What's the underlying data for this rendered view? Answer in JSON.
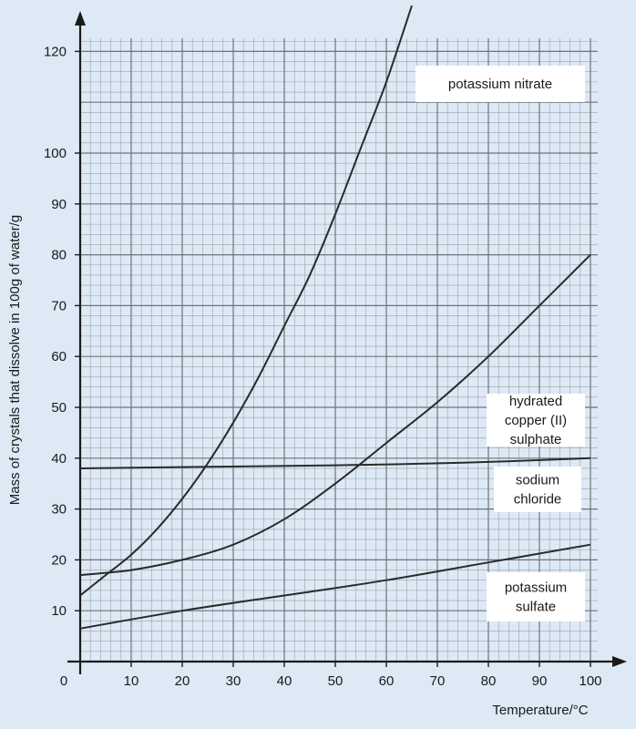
{
  "chart_data": {
    "type": "line",
    "title": "",
    "xlabel": "Temperature/°C",
    "ylabel": "Mass of crystals that dissolve in 100g of water/g",
    "xlim": [
      0,
      100
    ],
    "ylim": [
      0,
      130
    ],
    "origin_label": "0",
    "x_ticks": [
      10,
      20,
      30,
      40,
      50,
      60,
      70,
      80,
      90,
      100
    ],
    "y_ticks": [
      10,
      20,
      30,
      40,
      50,
      60,
      70,
      80,
      90,
      100,
      120
    ],
    "grid": true,
    "series": [
      {
        "name": "potassium nitrate",
        "label_lines": [
          "potassium nitrate"
        ],
        "x": [
          0,
          5,
          10,
          15,
          20,
          25,
          30,
          35,
          40,
          45,
          50,
          55,
          60,
          65
        ],
        "y": [
          13,
          17,
          21,
          26,
          32,
          39,
          47,
          56,
          66,
          76,
          88,
          101,
          114,
          129
        ]
      },
      {
        "name": "hydrated copper (II) sulphate",
        "label_lines": [
          "hydrated",
          "copper (II)",
          "sulphate"
        ],
        "x": [
          0,
          10,
          20,
          30,
          40,
          50,
          60,
          70,
          80,
          90,
          100
        ],
        "y": [
          17,
          18,
          20,
          23,
          28,
          35,
          43,
          51,
          60,
          70,
          80
        ]
      },
      {
        "name": "sodium chloride",
        "label_lines": [
          "sodium",
          "chloride"
        ],
        "x": [
          0,
          25,
          50,
          75,
          100
        ],
        "y": [
          38,
          38.3,
          38.6,
          39.1,
          40
        ]
      },
      {
        "name": "potassium sulfate",
        "label_lines": [
          "potassium",
          "sulfate"
        ],
        "x": [
          0,
          20,
          40,
          60,
          80,
          100
        ],
        "y": [
          6.5,
          10,
          13,
          16,
          19.5,
          23
        ]
      }
    ]
  }
}
